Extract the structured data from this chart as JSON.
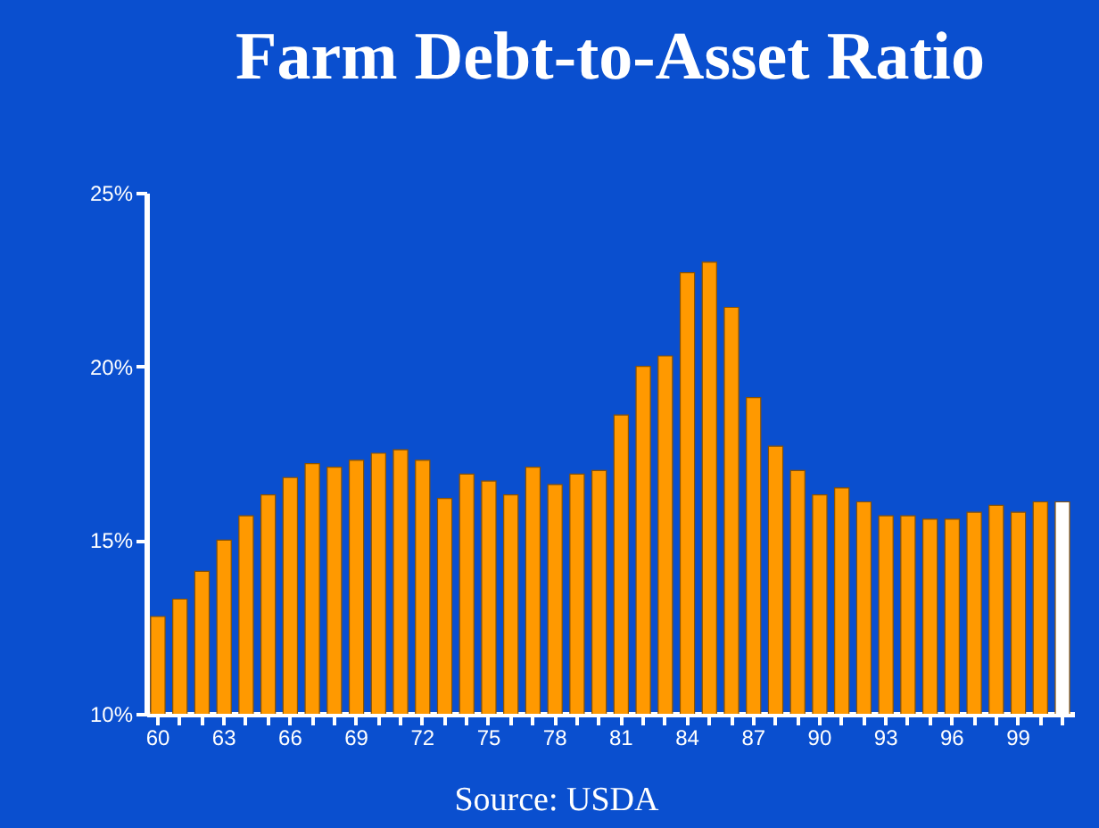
{
  "chart_data": {
    "type": "bar",
    "title": "Farm Debt-to-Asset Ratio",
    "categories": [
      "60",
      null,
      null,
      "63",
      null,
      null,
      "66",
      null,
      null,
      "69",
      null,
      null,
      "72",
      null,
      null,
      "75",
      null,
      null,
      "78",
      null,
      null,
      "81",
      null,
      null,
      "84",
      null,
      null,
      "87",
      null,
      null,
      "90",
      null,
      null,
      "93",
      null,
      null,
      "96",
      null,
      null,
      "99",
      null,
      null
    ],
    "values": [
      12.8,
      13.3,
      14.1,
      15.0,
      15.7,
      16.3,
      16.8,
      17.2,
      17.1,
      17.3,
      17.5,
      17.6,
      17.3,
      16.2,
      16.9,
      16.7,
      16.3,
      17.1,
      16.6,
      16.9,
      17.0,
      18.6,
      20.0,
      20.3,
      22.7,
      23.0,
      21.7,
      19.1,
      17.7,
      17.0,
      16.3,
      16.5,
      16.1,
      15.7,
      15.7,
      15.6,
      15.6,
      15.8,
      16.0,
      15.8,
      16.1,
      16.1
    ],
    "colors": [
      "#ff9900",
      "#ff9900",
      "#ff9900",
      "#ff9900",
      "#ff9900",
      "#ff9900",
      "#ff9900",
      "#ff9900",
      "#ff9900",
      "#ff9900",
      "#ff9900",
      "#ff9900",
      "#ff9900",
      "#ff9900",
      "#ff9900",
      "#ff9900",
      "#ff9900",
      "#ff9900",
      "#ff9900",
      "#ff9900",
      "#ff9900",
      "#ff9900",
      "#ff9900",
      "#ff9900",
      "#ff9900",
      "#ff9900",
      "#ff9900",
      "#ff9900",
      "#ff9900",
      "#ff9900",
      "#ff9900",
      "#ff9900",
      "#ff9900",
      "#ff9900",
      "#ff9900",
      "#ff9900",
      "#ff9900",
      "#ff9900",
      "#ff9900",
      "#ff9900",
      "#ff9900",
      "#ffffff"
    ],
    "ylim": [
      10,
      25
    ],
    "yticks": [
      {
        "value": 10,
        "label": "10%"
      },
      {
        "value": 15,
        "label": "15%"
      },
      {
        "value": 20,
        "label": "20%"
      },
      {
        "value": 25,
        "label": "25%"
      }
    ],
    "grid": false,
    "annotations": [
      "Source: USDA"
    ]
  }
}
